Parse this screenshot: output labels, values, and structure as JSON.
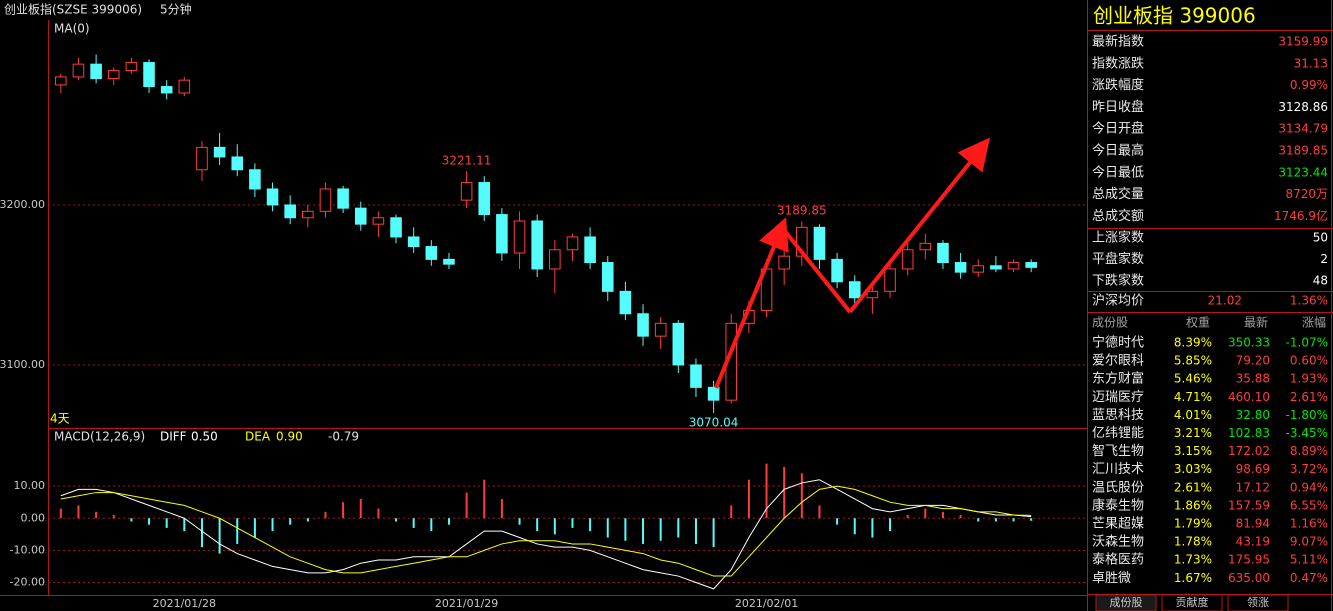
{
  "chart_data": [
    {
      "type": "candlestick",
      "title": "创业板指(SZSE 399006)",
      "period": "5分钟",
      "indicator": "MA(0)",
      "range_label": "4天",
      "up_color": "#ff3c3c",
      "down_color": "#54fcfc",
      "categories": [
        null,
        null,
        null,
        null,
        null,
        null,
        null,
        "2021/01/28",
        null,
        null,
        null,
        null,
        null,
        null,
        null,
        null,
        null,
        null,
        null,
        null,
        null,
        null,
        null,
        "2021/01/29",
        null,
        null,
        null,
        null,
        null,
        null,
        null,
        null,
        null,
        null,
        null,
        null,
        null,
        null,
        null,
        null,
        "2021/02/01",
        null,
        null,
        null,
        null,
        null,
        null,
        null,
        null,
        null,
        null,
        null,
        null,
        null,
        null,
        null
      ],
      "open": [
        3275,
        3280,
        3288,
        3279,
        3284,
        3289,
        3274,
        3270,
        3222,
        3236,
        3230,
        3222,
        3210,
        3200,
        3192,
        3196,
        3210,
        3198,
        3188,
        3192,
        3180,
        3174,
        3166,
        3203,
        3214,
        3194,
        3170,
        3190,
        3160,
        3172,
        3180,
        3164,
        3146,
        3132,
        3118,
        3126,
        3100,
        3086,
        3078,
        3126,
        3134,
        3160,
        3168,
        3186,
        3166,
        3152,
        3142,
        3146,
        3160,
        3172,
        3176,
        3164,
        3158,
        3162,
        3160,
        3164
      ],
      "high": [
        3282,
        3292,
        3294,
        3286,
        3292,
        3291,
        3278,
        3280,
        3240,
        3245,
        3238,
        3226,
        3214,
        3206,
        3200,
        3214,
        3212,
        3202,
        3196,
        3194,
        3186,
        3178,
        3170,
        3221.11,
        3218,
        3198,
        3196,
        3194,
        3178,
        3182,
        3186,
        3168,
        3152,
        3138,
        3130,
        3128,
        3104,
        3090,
        3132,
        3140,
        3166,
        3172,
        3189.85,
        3188,
        3170,
        3156,
        3150,
        3164,
        3176,
        3182,
        3178,
        3170,
        3166,
        3168,
        3166,
        3166
      ],
      "low": [
        3270,
        3278,
        3276,
        3275,
        3282,
        3270,
        3266,
        3268,
        3215,
        3225,
        3218,
        3205,
        3196,
        3188,
        3186,
        3192,
        3195,
        3184,
        3180,
        3176,
        3170,
        3162,
        3160,
        3198,
        3190,
        3165,
        3160,
        3155,
        3145,
        3165,
        3160,
        3140,
        3128,
        3112,
        3110,
        3095,
        3080,
        3070.04,
        3076,
        3120,
        3130,
        3150,
        3162,
        3160,
        3148,
        3136,
        3132,
        3142,
        3156,
        3166,
        3160,
        3154,
        3155,
        3158,
        3158,
        3158
      ],
      "close": [
        3280,
        3288,
        3279,
        3284,
        3289,
        3274,
        3270,
        3278,
        3236,
        3230,
        3222,
        3210,
        3200,
        3192,
        3196,
        3210,
        3198,
        3188,
        3192,
        3180,
        3174,
        3166,
        3163,
        3214,
        3194,
        3170,
        3190,
        3160,
        3172,
        3180,
        3164,
        3146,
        3132,
        3118,
        3126,
        3100,
        3086,
        3078,
        3126,
        3134,
        3160,
        3168,
        3186,
        3166,
        3152,
        3142,
        3146,
        3160,
        3172,
        3176,
        3164,
        3158,
        3162,
        3160,
        3164,
        3161
      ],
      "ylim": [
        3060.6,
        3315.6
      ],
      "yticks": [
        {
          "value": 3100,
          "label": "3100.00"
        },
        {
          "value": 3200,
          "label": "3200.00"
        }
      ],
      "grid": true
    },
    {
      "type": "macd",
      "title": "MACD(12,26,9)",
      "up_color": "#ff3c3c",
      "down_color": "#54fcfc",
      "series": [
        {
          "name": "DIFF",
          "color": "#ffffff",
          "values": [
            7,
            9,
            9,
            8,
            6,
            4,
            2,
            0,
            -4,
            -8,
            -11,
            -13,
            -15,
            -16,
            -17,
            -17,
            -16,
            -14,
            -13,
            -13,
            -12,
            -12,
            -12,
            -8,
            -4,
            -4,
            -6,
            -8,
            -9,
            -9,
            -10,
            -12,
            -14,
            -16,
            -17,
            -18,
            -20,
            -22,
            -16,
            -6,
            3,
            9,
            11,
            12,
            9,
            6,
            3,
            2,
            3,
            4,
            4,
            3,
            2,
            1,
            1,
            0.5
          ],
          "value_labels": [
            null,
            null,
            null,
            null,
            null,
            null,
            null,
            null,
            null,
            null,
            null,
            null,
            null,
            null,
            null,
            null,
            null,
            null,
            null,
            null,
            null,
            null,
            null,
            null,
            null,
            null,
            null,
            null,
            null,
            null,
            null,
            null,
            null,
            null,
            null,
            null,
            null,
            null,
            null,
            null,
            null,
            null,
            null,
            null,
            null,
            null,
            null,
            null,
            null,
            null,
            null,
            null,
            null,
            null,
            null,
            "0.50"
          ]
        },
        {
          "name": "DEA",
          "color": "#ffff00",
          "values": [
            6,
            7,
            8,
            8,
            7,
            6,
            5,
            4,
            2,
            0,
            -3,
            -6,
            -9,
            -12,
            -14,
            -16,
            -17,
            -17,
            -16,
            -15,
            -14,
            -13,
            -12,
            -12,
            -10,
            -8,
            -7,
            -7,
            -7,
            -8,
            -8,
            -9,
            -10,
            -11,
            -13,
            -14,
            -16,
            -18,
            -18,
            -12,
            -6,
            0,
            5,
            9,
            10,
            9,
            7,
            5,
            4,
            4,
            3,
            3,
            2,
            2,
            1,
            0.9
          ],
          "value_labels": [
            null,
            null,
            null,
            null,
            null,
            null,
            null,
            null,
            null,
            null,
            null,
            null,
            null,
            null,
            null,
            null,
            null,
            null,
            null,
            null,
            null,
            null,
            null,
            null,
            null,
            null,
            null,
            null,
            null,
            null,
            null,
            null,
            null,
            null,
            null,
            null,
            null,
            null,
            null,
            null,
            null,
            null,
            null,
            null,
            null,
            null,
            null,
            null,
            null,
            null,
            null,
            null,
            null,
            null,
            null,
            "0.90"
          ]
        }
      ],
      "histogram": [
        3,
        4,
        2,
        1,
        -1,
        -2,
        -3,
        -4,
        -9,
        -11,
        -8,
        -6,
        -4,
        -2,
        -1,
        2,
        5,
        6,
        3,
        -1,
        -3,
        -4,
        -2,
        8,
        12,
        6,
        -2,
        -4,
        -5,
        -3,
        -4,
        -6,
        -7,
        -8,
        -7,
        -6,
        -8,
        -9,
        4,
        12,
        17,
        16,
        14,
        4,
        -2,
        -5,
        -6,
        -4,
        1,
        3,
        2,
        1,
        -1,
        -1,
        -1,
        -0.79
      ],
      "ylim": [
        -23.9,
        22.5
      ],
      "yticks": [
        {
          "value": 10,
          "label": "10.00"
        },
        {
          "value": 0,
          "label": "0.00"
        },
        {
          "value": -10,
          "label": "-10.00"
        },
        {
          "value": -20,
          "label": "-20.00"
        }
      ],
      "grid": true
    }
  ],
  "sidebar": {
    "title": "创业板指  399006",
    "stats": [
      {
        "label": "最新指数",
        "value": "3159.99",
        "color": "#ff3c3c"
      },
      {
        "label": "指数涨跌",
        "value": "31.13",
        "color": "#ff3c3c"
      },
      {
        "label": "涨跌幅度",
        "value": "0.99%",
        "color": "#ff3c3c"
      },
      {
        "label": "昨日收盘",
        "value": "3128.86",
        "color": "#ffffff"
      },
      {
        "label": "今日开盘",
        "value": "3134.79",
        "color": "#ff3c3c"
      },
      {
        "label": "今日最高",
        "value": "3189.85",
        "color": "#ff3c3c"
      },
      {
        "label": "今日最低",
        "value": "3123.44",
        "color": "#00e600"
      },
      {
        "label": "总成交量",
        "value": "8720万",
        "color": "#ff3c3c"
      },
      {
        "label": "总成交额",
        "value": "1746.9亿",
        "color": "#ff3c3c"
      }
    ],
    "breadth": [
      {
        "label": "上涨家数",
        "value": "50"
      },
      {
        "label": "平盘家数",
        "value": "2"
      },
      {
        "label": "下跌家数",
        "value": "48"
      }
    ],
    "avg": {
      "label": "沪深均价",
      "price": "21.02",
      "change": "1.36%"
    },
    "table": {
      "headers": [
        "成份股",
        "权重",
        "最新",
        "涨幅"
      ],
      "rows": [
        [
          "宁德时代",
          "8.39%",
          "350.33",
          "-1.07%"
        ],
        [
          "爱尔眼科",
          "5.85%",
          "79.20",
          "0.60%"
        ],
        [
          "东方财富",
          "5.46%",
          "35.88",
          "1.93%"
        ],
        [
          "迈瑞医疗",
          "4.71%",
          "460.10",
          "2.61%"
        ],
        [
          "蓝思科技",
          "4.01%",
          "32.80",
          "-1.80%"
        ],
        [
          "亿纬锂能",
          "3.21%",
          "102.83",
          "-3.45%"
        ],
        [
          "智飞生物",
          "3.15%",
          "172.02",
          "8.89%"
        ],
        [
          "汇川技术",
          "3.03%",
          "98.69",
          "3.72%"
        ],
        [
          "温氏股份",
          "2.61%",
          "17.12",
          "0.94%"
        ],
        [
          "康泰生物",
          "1.86%",
          "157.59",
          "6.55%"
        ],
        [
          "芒果超媒",
          "1.79%",
          "81.94",
          "1.16%"
        ],
        [
          "沃森生物",
          "1.78%",
          "43.19",
          "9.07%"
        ],
        [
          "泰格医药",
          "1.73%",
          "175.95",
          "5.11%"
        ],
        [
          "卓胜微",
          "1.67%",
          "635.00",
          "0.47%"
        ]
      ]
    },
    "tabs": [
      "成份股",
      "贡献度",
      "领涨"
    ]
  }
}
